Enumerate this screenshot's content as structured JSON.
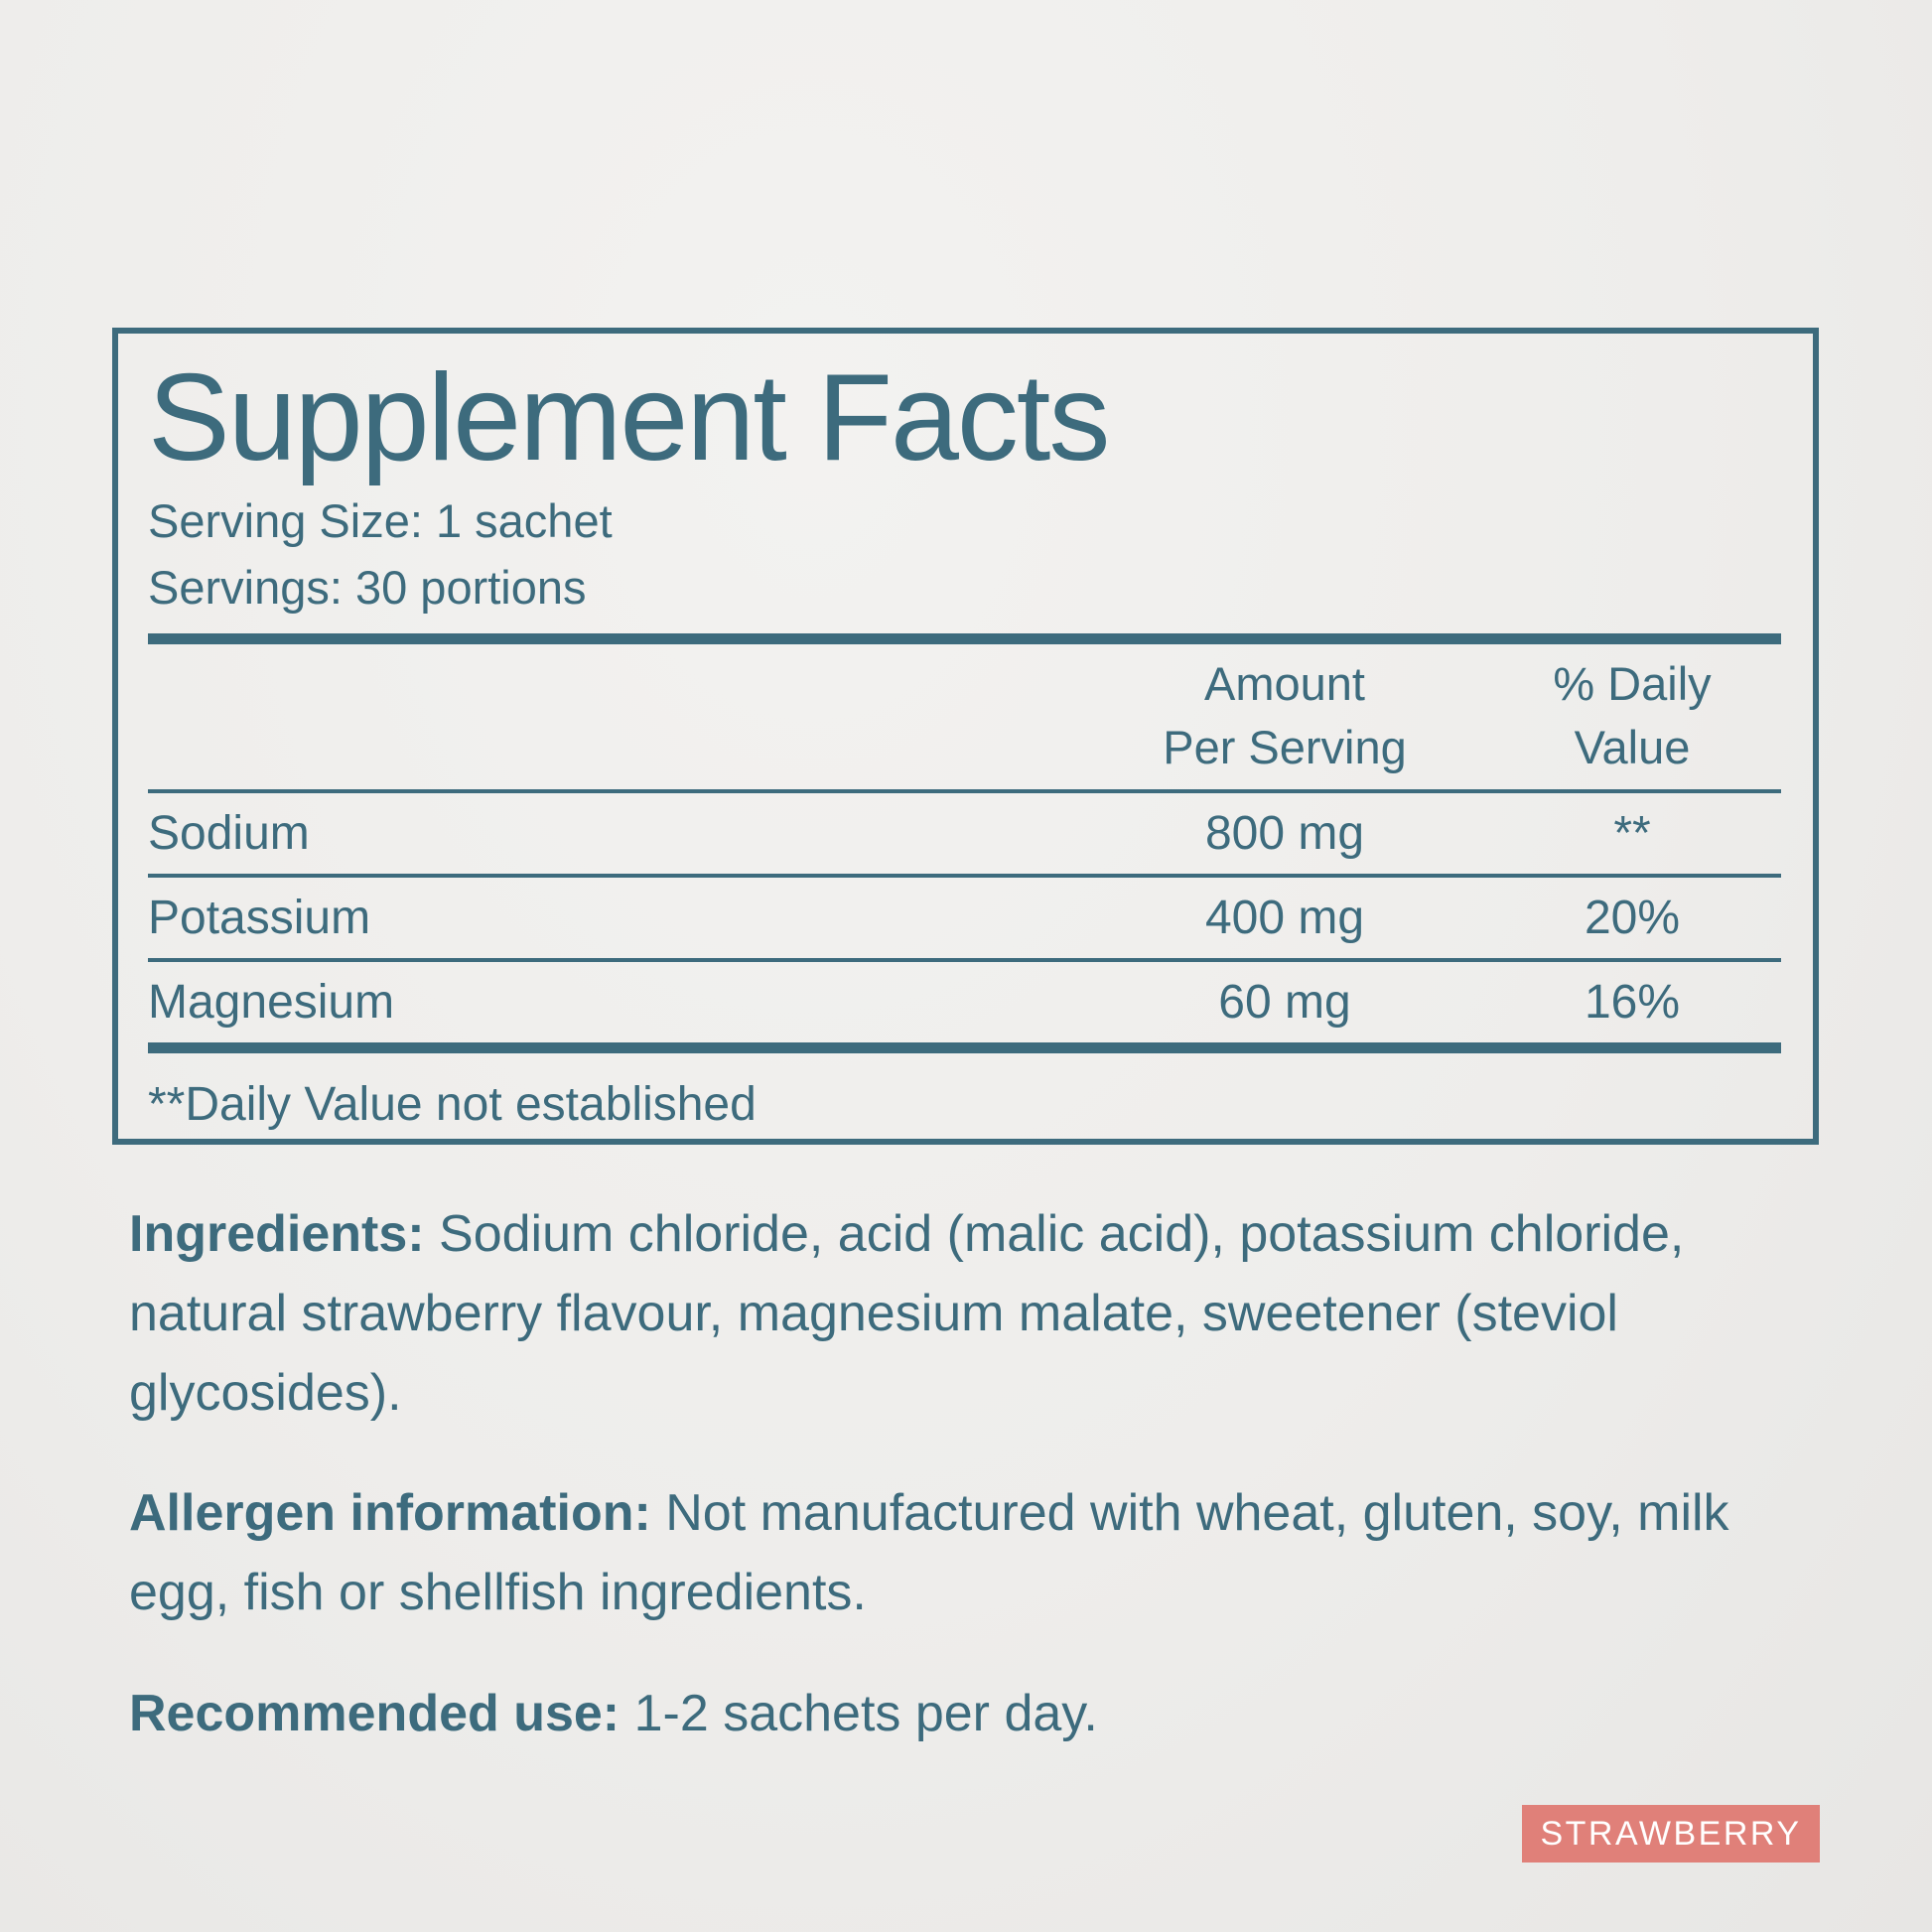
{
  "panel": {
    "title": "Supplement Facts",
    "serving_size": "Serving Size: 1 sachet",
    "servings": "Servings: 30 portions",
    "columns": {
      "amount_line1": "Amount",
      "amount_line2": "Per Serving",
      "dv_line1": "% Daily",
      "dv_line2": "Value"
    },
    "rows": [
      {
        "name": "Sodium",
        "amount": "800 mg",
        "dv": "**"
      },
      {
        "name": "Potassium",
        "amount": "400 mg",
        "dv": "20%"
      },
      {
        "name": "Magnesium",
        "amount": "60 mg",
        "dv": "16%"
      }
    ],
    "footnote": "**Daily Value not established"
  },
  "paragraphs": {
    "ingredients_label": "Ingredients:",
    "ingredients_text": " Sodium chloride, acid (malic acid), potassium chloride, natural strawberry flavour, magnesium malate, sweetener (steviol glycosides).",
    "allergen_label": "Allergen information:",
    "allergen_text": " Not manufactured with wheat, gluten, soy, milk egg, fish or shellfish ingredients.",
    "use_label": "Recommended use:",
    "use_text": " 1-2 sachets per day."
  },
  "badge": {
    "label": "STRAWBERRY",
    "color": "#e08079"
  },
  "colors": {
    "ink": "#3d6b7d",
    "background": "#eeedeb"
  }
}
